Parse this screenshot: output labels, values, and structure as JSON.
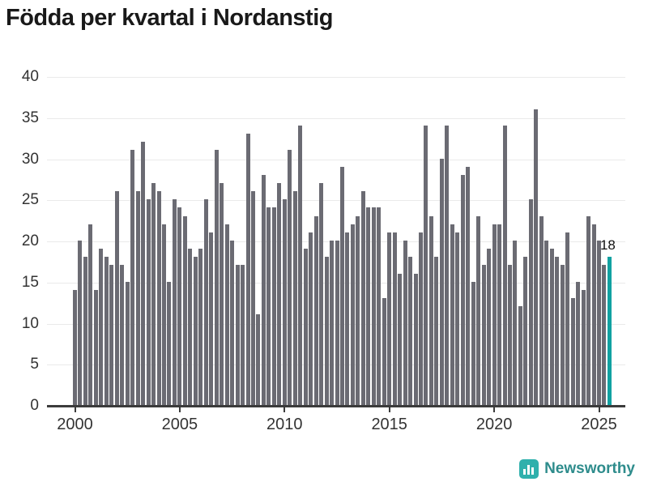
{
  "title": "Födda per kvartal i Nordanstig",
  "y_axis": {
    "tick_values": [
      0,
      5,
      10,
      15,
      20,
      25,
      30,
      35,
      40
    ],
    "max": 40
  },
  "x_axis": {
    "tick_years": [
      "2000",
      "2005",
      "2010",
      "2015",
      "2020",
      "2025"
    ]
  },
  "annotation": {
    "last_value_label": "18"
  },
  "branding": {
    "name": "Newsworthy",
    "icon": "bar-chart-icon"
  },
  "colors": {
    "bar": "#6b6b73",
    "highlight": "#11a1a1",
    "axis": "#3b3b3b",
    "grid": "#eaeaea",
    "tick_text": "#333333",
    "title_text": "#191919",
    "brand_text": "#2e8c8c",
    "brand_icon": "#2fb0ac"
  },
  "chart_data": {
    "type": "bar",
    "title": "Födda per kvartal i Nordanstig",
    "xlabel": "",
    "ylabel": "",
    "ylim": [
      0,
      40
    ],
    "grid": true,
    "x_start_quarter": "2000-Q1",
    "x_end_quarter": "2025-Q3",
    "tick_years": [
      2000,
      2005,
      2010,
      2015,
      2020,
      2025
    ],
    "series": [
      {
        "name": "Födda per kvartal",
        "values": [
          14,
          20,
          18,
          22,
          14,
          19,
          18,
          17,
          26,
          17,
          15,
          31,
          26,
          32,
          25,
          27,
          26,
          22,
          15,
          25,
          24,
          23,
          19,
          18,
          19,
          25,
          21,
          31,
          27,
          22,
          20,
          17,
          17,
          33,
          26,
          11,
          28,
          24,
          24,
          27,
          25,
          31,
          26,
          34,
          19,
          21,
          23,
          27,
          18,
          20,
          20,
          29,
          21,
          22,
          23,
          26,
          24,
          24,
          24,
          13,
          21,
          21,
          16,
          20,
          18,
          16,
          21,
          34,
          23,
          18,
          30,
          34,
          22,
          21,
          28,
          29,
          15,
          23,
          17,
          19,
          22,
          22,
          34,
          17,
          20,
          12,
          18,
          25,
          36,
          23,
          20,
          19,
          18,
          17,
          21,
          13,
          15,
          14,
          23,
          22,
          20,
          17,
          18
        ]
      }
    ],
    "highlight_last_bar": {
      "quarter": "2025-Q3",
      "value": 18,
      "label": "18"
    }
  }
}
